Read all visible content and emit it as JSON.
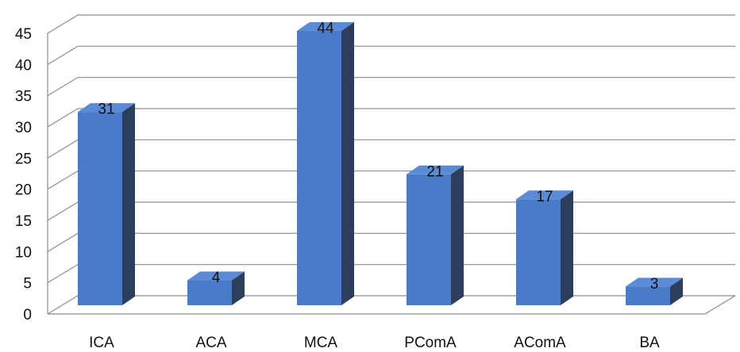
{
  "chart_data": {
    "type": "bar",
    "categories": [
      "ICA",
      "ACA",
      "MCA",
      "PComA",
      "AComA",
      "BA"
    ],
    "values": [
      31,
      4,
      44,
      21,
      17,
      3
    ],
    "yticks": [
      "0",
      "5",
      "10",
      "15",
      "20",
      "25",
      "30",
      "35",
      "40",
      "45"
    ],
    "data_labels": [
      "31",
      "4",
      "44",
      "21",
      "17",
      "3"
    ],
    "ylim": [
      0,
      45
    ],
    "grid": true,
    "legend": "none",
    "style": "3d-column",
    "colors": {
      "bar_front": "#4A7BC8",
      "bar_side": "#2C3E5C",
      "bar_top": "#5B8AD6",
      "grid": "#8C8C8C",
      "text": "#111111"
    }
  }
}
